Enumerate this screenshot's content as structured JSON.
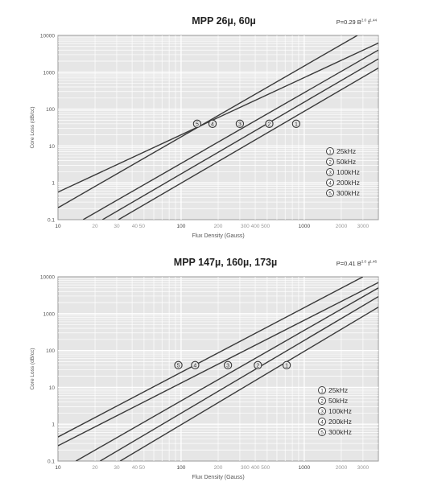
{
  "chart_data": [
    {
      "type": "line",
      "title": "MPP 26µ, 60µ",
      "formula": {
        "prefix": "P=0.29",
        "b_term": "B",
        "b_exp": "2.0",
        "f_term": "f",
        "f_exp": "1.44"
      },
      "xlabel": "Flux Density (Gauss)",
      "ylabel": "Core Loss (dB/cc)",
      "xscale": "log",
      "yscale": "log",
      "xlim": [
        10,
        4000
      ],
      "ylim": [
        0.1,
        10000
      ],
      "x_ticks": [
        "10",
        "20",
        "30",
        "40 50",
        "100",
        "200",
        "300 400 500",
        "1000",
        "2000",
        "3000"
      ],
      "x_tick_values": [
        10,
        20,
        30,
        45,
        100,
        200,
        400,
        1000,
        2000,
        3000
      ],
      "y_ticks": [
        "0.1",
        "1",
        "10",
        "100",
        "1000",
        "10000"
      ],
      "y_tick_values": [
        0.1,
        1,
        10,
        100,
        1000,
        10000
      ],
      "grid": true,
      "legend_position": "right",
      "series": [
        {
          "name": "25kHz",
          "marker": "1",
          "x": [
            10,
            2700
          ],
          "y": [
            0.21,
            10000
          ],
          "label_x": 860,
          "label_y": 40
        },
        {
          "name": "50kHz",
          "marker": "2",
          "x": [
            10,
            4000
          ],
          "y": [
            0.56,
            6200
          ],
          "label_x": 520,
          "label_y": 40
        },
        {
          "name": "100kHz",
          "marker": "3",
          "x": [
            16,
            4000
          ],
          "y": [
            0.1,
            4000
          ],
          "label_x": 300,
          "label_y": 40
        },
        {
          "name": "200kHz",
          "marker": "4",
          "x": [
            23,
            4000
          ],
          "y": [
            0.1,
            2300
          ],
          "label_x": 180,
          "label_y": 40
        },
        {
          "name": "300kHz",
          "marker": "5",
          "x": [
            31,
            4000
          ],
          "y": [
            0.1,
            1300
          ],
          "label_x": 135,
          "label_y": 40
        }
      ]
    },
    {
      "type": "line",
      "title": "MPP 147µ, 160µ, 173µ",
      "formula": {
        "prefix": "P=0.41",
        "b_term": "B",
        "b_exp": "2.0",
        "f_term": "f",
        "f_exp": "1.46"
      },
      "xlabel": "Flux Density (Gauss)",
      "ylabel": "Core Loss (dB/cc)",
      "xscale": "log",
      "yscale": "log",
      "xlim": [
        10,
        4000
      ],
      "ylim": [
        0.1,
        10000
      ],
      "x_ticks": [
        "10",
        "20",
        "30",
        "40 50",
        "100",
        "200",
        "300 400 500",
        "1000",
        "2000",
        "3000"
      ],
      "x_tick_values": [
        10,
        20,
        30,
        45,
        100,
        200,
        400,
        1000,
        2000,
        3000
      ],
      "y_ticks": [
        "0.1",
        "1",
        "10",
        "100",
        "1000",
        "10000"
      ],
      "y_tick_values": [
        0.1,
        1,
        10,
        100,
        1000,
        10000
      ],
      "grid": true,
      "legend_position": "right",
      "series": [
        {
          "name": "25kHz",
          "marker": "1",
          "x": [
            10,
            3000
          ],
          "y": [
            0.45,
            10000
          ],
          "label_x": 720,
          "label_y": 40
        },
        {
          "name": "50kHz",
          "marker": "2",
          "x": [
            10,
            4000
          ],
          "y": [
            0.26,
            7000
          ],
          "label_x": 420,
          "label_y": 40
        },
        {
          "name": "100kHz",
          "marker": "3",
          "x": [
            14,
            4000
          ],
          "y": [
            0.1,
            5000
          ],
          "label_x": 240,
          "label_y": 40
        },
        {
          "name": "200kHz",
          "marker": "4",
          "x": [
            22,
            4000
          ],
          "y": [
            0.1,
            2900
          ],
          "label_x": 130,
          "label_y": 40
        },
        {
          "name": "300kHz",
          "marker": "5",
          "x": [
            32,
            4000
          ],
          "y": [
            0.1,
            1500
          ],
          "label_x": 95,
          "label_y": 40
        }
      ]
    }
  ]
}
